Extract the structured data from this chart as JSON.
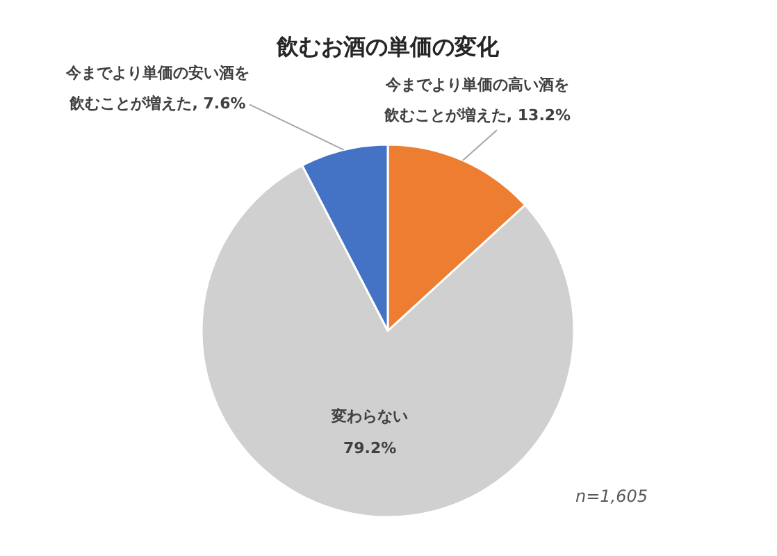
{
  "chart_data": {
    "type": "pie",
    "title": "飲むお酒の単価の変化",
    "categories": [
      "今までより単価の高い酒を飲むことが増えた",
      "変わらない",
      "今までより単価の安い酒を飲むことが増えた"
    ],
    "values": [
      13.2,
      79.2,
      7.6
    ],
    "colors": [
      "#ed7d31",
      "#d0d0d0",
      "#4472c4"
    ],
    "value_labels": [
      "13.2%",
      "79.2%",
      "7.6%"
    ],
    "annotations": [
      "n=1,605"
    ]
  }
}
